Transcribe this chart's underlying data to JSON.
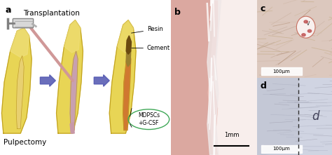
{
  "fig_width": 4.74,
  "fig_height": 2.21,
  "dpi": 100,
  "bg_color": "#ffffff",
  "panel_a": {
    "label": "a",
    "title_transplantation": "Transplantation",
    "label_resin": "Resin",
    "label_cement": "Cement",
    "label_mdpscs": "MDPSCs\n+G-CSF",
    "label_pulpectomy": "Pulpectomy",
    "tooth_color": "#e8d555",
    "tooth_shade": "#d4b830",
    "tooth_border": "#c0a020",
    "pulp_color_empty": "#f5e898",
    "pulp_color_filled": "#c8a0b0",
    "mdpsc_color": "#d07830",
    "resin_color": "#7a5a10",
    "cement_color": "#9a7820",
    "arrow_color": "#5055b0",
    "syringe_body": "#c8c8c8",
    "syringe_needle": "#d09898",
    "bubble_color": "#40a858"
  },
  "panel_b": {
    "label": "b",
    "bg_left": "#e8b8b0",
    "bg_right": "#f5c8c0",
    "tissue_color": "#f0e8e4",
    "scalebar_text": "1mm"
  },
  "panel_c": {
    "label": "c",
    "bg_color": "#dcc8be",
    "vessel_color": "#c87070",
    "label_v": "v",
    "scalebar_text": "100μm"
  },
  "panel_d": {
    "label": "d",
    "bg_left": "#c8ccd8",
    "bg_right": "#d8dce8",
    "label_d": "d",
    "scalebar_text": "100μm",
    "dashed_line_color": "#303030"
  }
}
